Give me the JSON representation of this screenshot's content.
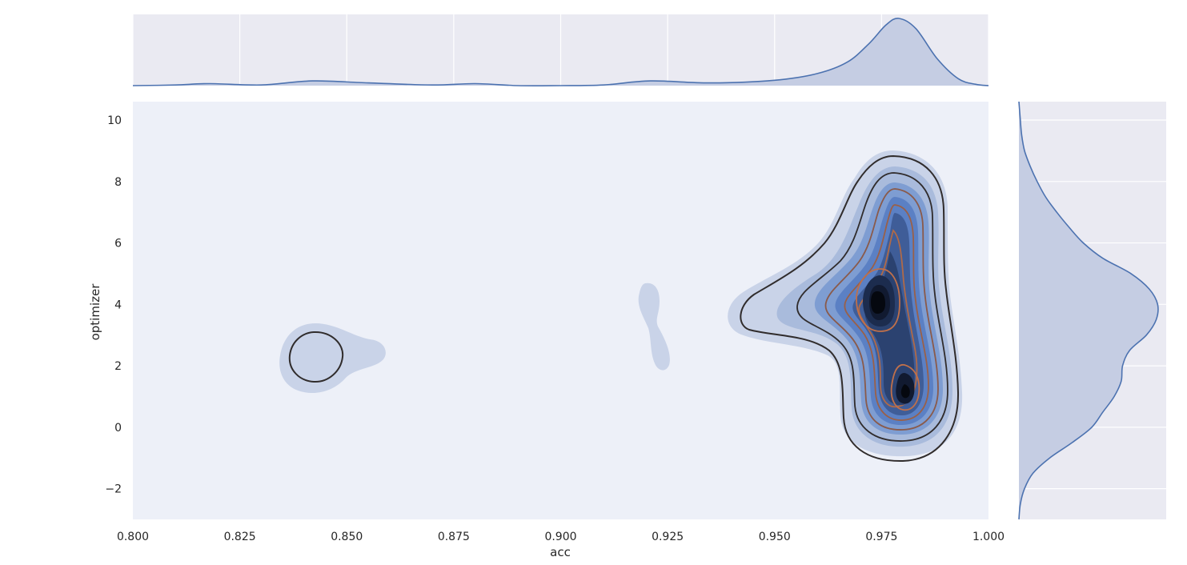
{
  "chart_data": {
    "type": "kde_jointplot",
    "title": "",
    "xlabel": "acc",
    "ylabel": "optimizer",
    "xlim": [
      0.8,
      1.0
    ],
    "ylim": [
      -3,
      10.6
    ],
    "x_ticks": [
      "0.800",
      "0.825",
      "0.850",
      "0.875",
      "0.900",
      "0.925",
      "0.950",
      "0.975",
      "1.000"
    ],
    "y_ticks": [
      "−2",
      "0",
      "2",
      "4",
      "6",
      "8",
      "10"
    ],
    "x_tick_values": [
      0.8,
      0.825,
      0.85,
      0.875,
      0.9,
      0.925,
      0.95,
      0.975,
      1.0
    ],
    "y_tick_values": [
      -2,
      0,
      2,
      4,
      6,
      8,
      10
    ],
    "grid": true,
    "colors": {
      "panel_bg": "#eaeaf2",
      "joint_bg": "#edf0f8",
      "kde_line": "#4c72b0",
      "kde_fill": "#c5cde3",
      "contour_dark": "#302c2c",
      "contour_orange": "#c0704a",
      "fill_levels": [
        "#c9d3e8",
        "#a9bbdc",
        "#7e9dd2",
        "#5b80c4",
        "#3f5d98",
        "#2b4270",
        "#1c2c4e",
        "#111a30",
        "#05080f"
      ]
    },
    "marginal_x": {
      "x": [
        0.8,
        0.81,
        0.818,
        0.83,
        0.842,
        0.855,
        0.87,
        0.88,
        0.89,
        0.9,
        0.91,
        0.921,
        0.935,
        0.95,
        0.96,
        0.967,
        0.972,
        0.976,
        0.979,
        0.983,
        0.988,
        0.993,
        0.997,
        1.0
      ],
      "density": [
        0.0,
        0.01,
        0.03,
        0.01,
        0.07,
        0.04,
        0.01,
        0.03,
        0.0,
        0.0,
        0.01,
        0.07,
        0.04,
        0.08,
        0.18,
        0.35,
        0.62,
        0.9,
        1.0,
        0.85,
        0.4,
        0.1,
        0.02,
        0.0
      ]
    },
    "marginal_y": {
      "y": [
        -3,
        -2.5,
        -2,
        -1.5,
        -1,
        -0.5,
        0,
        0.5,
        1,
        1.5,
        2,
        2.5,
        3,
        3.5,
        4,
        4.5,
        5,
        5.5,
        6,
        6.5,
        7,
        7.5,
        8,
        8.5,
        9,
        9.5,
        10,
        10.6
      ],
      "density": [
        0.0,
        0.01,
        0.04,
        0.1,
        0.22,
        0.38,
        0.52,
        0.6,
        0.68,
        0.73,
        0.74,
        0.79,
        0.91,
        0.98,
        0.99,
        0.93,
        0.8,
        0.6,
        0.46,
        0.36,
        0.27,
        0.19,
        0.13,
        0.08,
        0.04,
        0.02,
        0.01,
        0.0
      ]
    }
  }
}
